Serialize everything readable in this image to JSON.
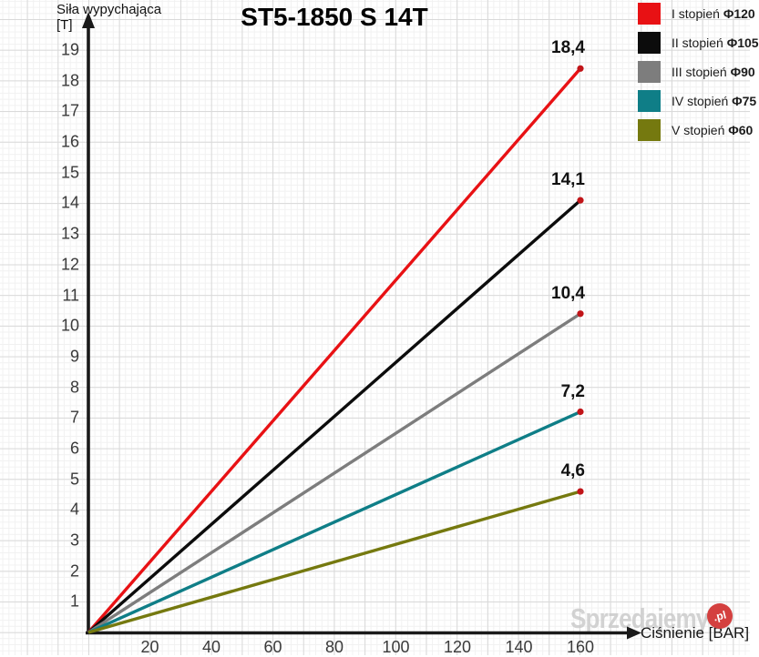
{
  "title": "ST5-1850 S 14T",
  "axes": {
    "y": {
      "label_line1": "Siła wypychająca",
      "label_line2": "[T]"
    },
    "x": {
      "label": "Ciśnienie [BAR]"
    }
  },
  "watermark": {
    "text": "Sprzedajemy",
    "badge": ".pl"
  },
  "chart_data": {
    "type": "line",
    "title": "ST5-1850 S 14T",
    "xlabel": "Ciśnienie [BAR]",
    "ylabel": "Siła wypychająca [T]",
    "xlim": [
      0,
      175
    ],
    "ylim": [
      0,
      20
    ],
    "grid": true,
    "legend_position": "top-right",
    "x_ticks": [
      20,
      40,
      60,
      80,
      100,
      120,
      140,
      160
    ],
    "y_ticks": [
      1,
      2,
      3,
      4,
      5,
      6,
      7,
      8,
      9,
      10,
      11,
      12,
      13,
      14,
      15,
      16,
      17,
      18,
      19
    ],
    "x": [
      0,
      160
    ],
    "point_color": "#c11418",
    "axis_color": "#1a1a1a",
    "series": [
      {
        "name": "I stopień Φ120",
        "stage": "I stopień",
        "diameter": "Φ120",
        "color": "#e81114",
        "values": [
          0,
          18.4
        ],
        "end_label": "18,4"
      },
      {
        "name": "II stopień Φ105",
        "stage": "II stopień",
        "diameter": "Φ105",
        "color": "#0c0c0c",
        "values": [
          0,
          14.1
        ],
        "end_label": "14,1"
      },
      {
        "name": "III stopień Φ90",
        "stage": "III stopień",
        "diameter": "Φ90",
        "color": "#7d7d7d",
        "values": [
          0,
          10.4
        ],
        "end_label": "10,4"
      },
      {
        "name": "IV stopień Φ75",
        "stage": "IV stopień",
        "diameter": "Φ75",
        "color": "#0f7e87",
        "values": [
          0,
          7.2
        ],
        "end_label": "7,2"
      },
      {
        "name": "V stopień Φ60",
        "stage": "V stopień",
        "diameter": "Φ60",
        "color": "#75790f",
        "values": [
          0,
          4.6
        ],
        "end_label": "4,6"
      }
    ]
  }
}
